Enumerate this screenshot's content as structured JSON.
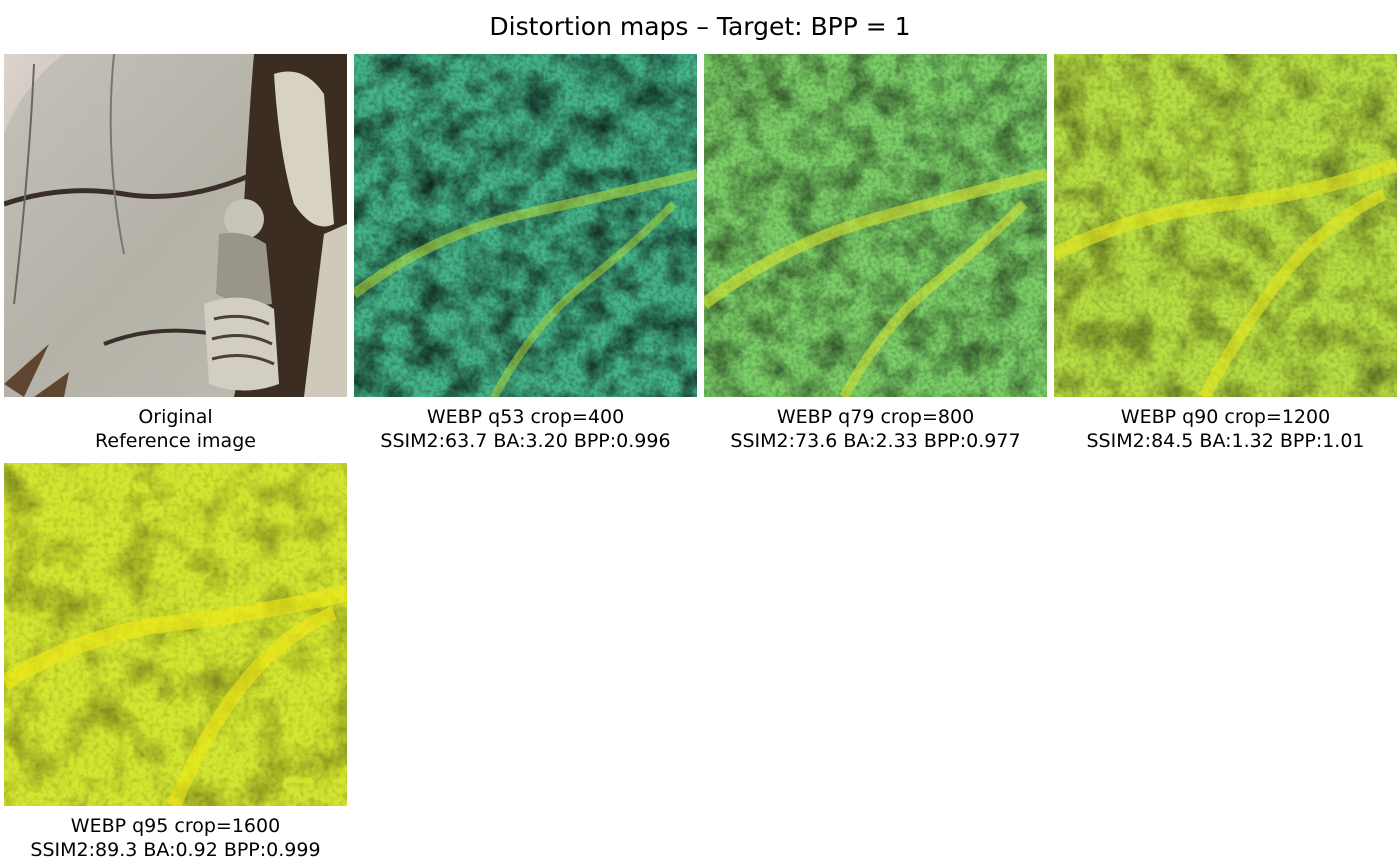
{
  "title": "Distortion maps – Target: BPP = 1",
  "panels": [
    {
      "kind": "reference",
      "line1": "Original",
      "line2": "Reference image"
    },
    {
      "kind": "distortion",
      "line1": "WEBP q53 crop=400",
      "line2": "SSIM2:63.7 BA:3.20 BPP:0.996",
      "base_color": "#45b489",
      "accent_color": "#b8de3a",
      "dark_color": "#2a8c8b"
    },
    {
      "kind": "distortion",
      "line1": "WEBP q79 crop=800",
      "line2": "SSIM2:73.6 BA:2.33 BPP:0.977",
      "base_color": "#7ccf68",
      "accent_color": "#d7e432",
      "dark_color": "#35a486"
    },
    {
      "kind": "distortion",
      "line1": "WEBP q90 crop=1200",
      "line2": "SSIM2:84.5 BA:1.32 BPP:1.01",
      "base_color": "#b7dd42",
      "accent_color": "#e8e81e",
      "dark_color": "#6cc86e"
    },
    {
      "kind": "distortion",
      "line1": "WEBP q95 crop=1600",
      "line2": "SSIM2:89.3 BA:0.92 BPP:0.999",
      "base_color": "#d2e530",
      "accent_color": "#f1ea16",
      "dark_color": "#8fd45e"
    }
  ]
}
